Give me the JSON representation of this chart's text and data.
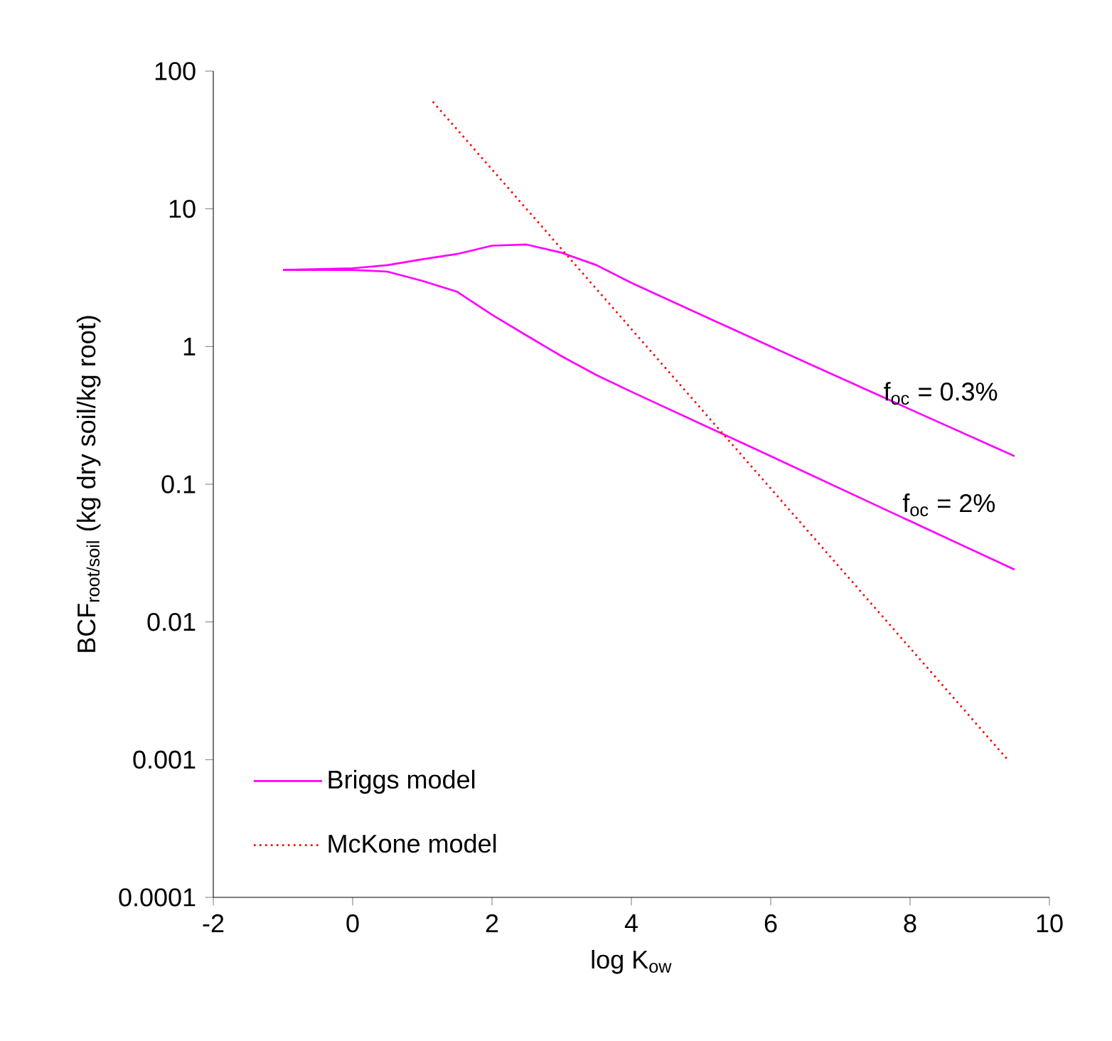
{
  "chart_data": {
    "type": "line",
    "xlabel": "log K$_{ow}$",
    "ylabel": "BCF$_{root/soil}$ (kg dry soil/kg root)",
    "series": [
      {
        "name": "Briggs model",
        "color": "#ff00ff",
        "line_style": "solid",
        "x": [
          -1,
          0,
          0.5,
          1,
          1.5,
          2,
          2.5,
          3,
          3.5,
          4,
          6,
          8,
          9.5
        ],
        "values": [
          3.6,
          3.7,
          3.9,
          4.3,
          4.7,
          5.4,
          5.5,
          4.8,
          3.9,
          2.9,
          1.0,
          0.35,
          0.16
        ]
      },
      {
        "color": "#ff00ff",
        "line_style": "solid",
        "x": [
          -1,
          0,
          0.5,
          1,
          1.5,
          2,
          2.5,
          3,
          3.5,
          4,
          6,
          8,
          9.5
        ],
        "values": [
          3.6,
          3.6,
          3.5,
          3.0,
          2.5,
          1.7,
          1.2,
          0.85,
          0.62,
          0.47,
          0.16,
          0.054,
          0.024
        ]
      },
      {
        "name": "McKone model",
        "color": "#ff0000",
        "line_style": "dotted",
        "x": [
          1.15,
          9.4
        ],
        "values": [
          60,
          0.001
        ]
      }
    ],
    "xlim": [
      -2,
      10
    ],
    "xticks": [
      -2,
      0,
      2,
      4,
      6,
      8,
      10
    ],
    "ylim": [
      0.0001,
      100
    ],
    "yticks": [
      0.0001,
      0.001,
      0.01,
      0.1,
      1,
      10,
      100
    ],
    "log": "y",
    "legend": "bottom left",
    "annotations": [
      "f$_{oc}$ = 0.3%",
      "f$_{oc}$ = 2%"
    ]
  }
}
